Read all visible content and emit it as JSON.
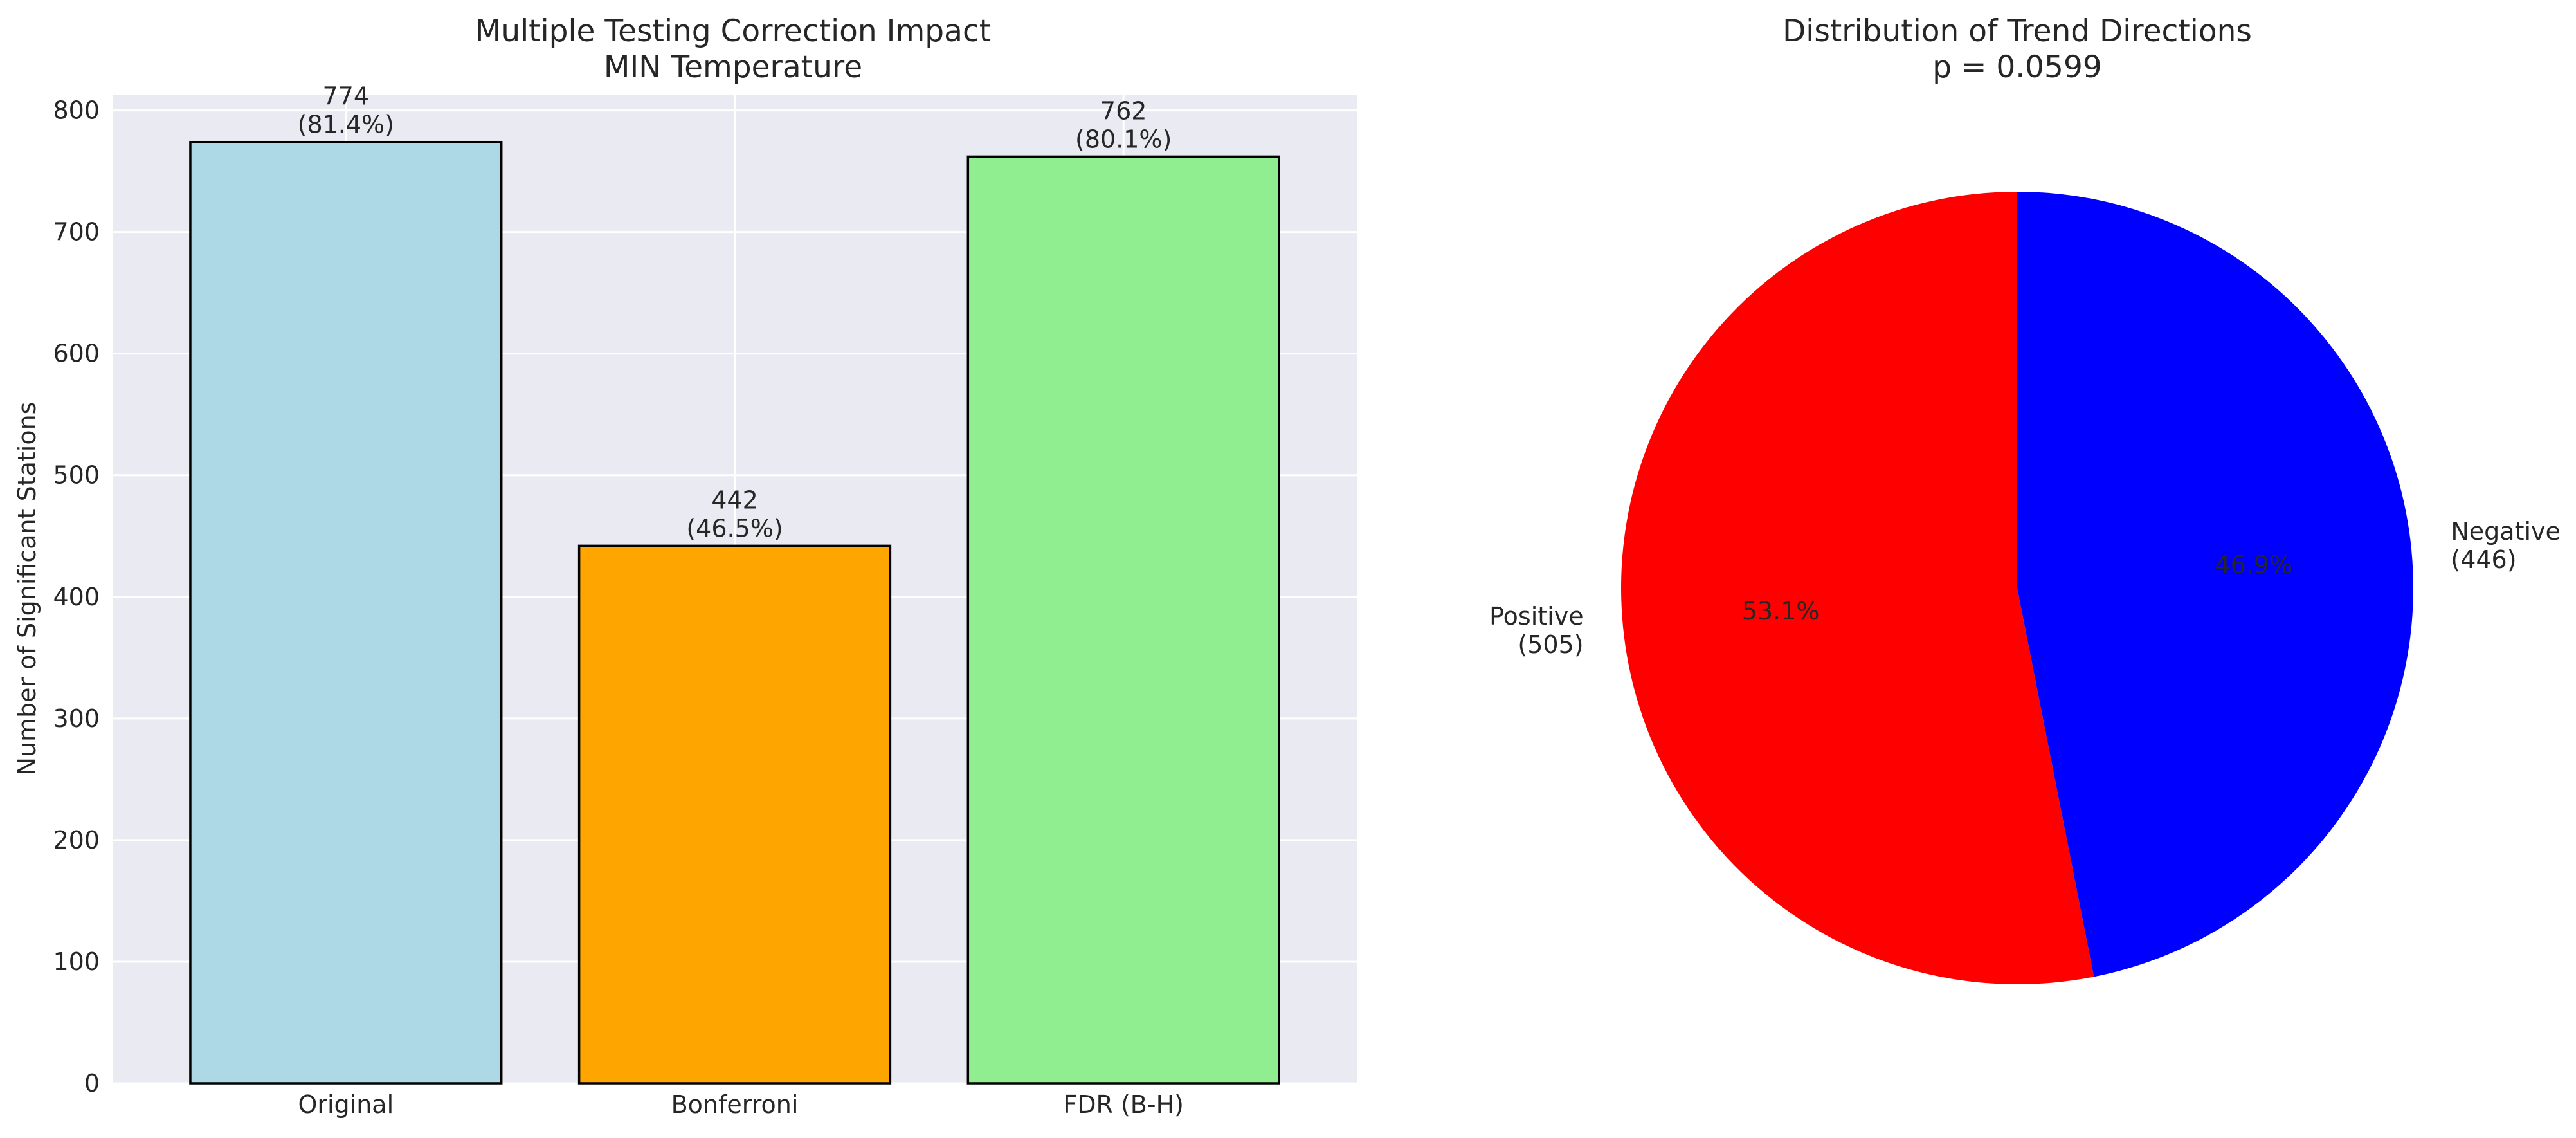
{
  "chart_data": [
    {
      "type": "bar",
      "title": "Multiple Testing Correction Impact",
      "subtitle": "MIN Temperature",
      "xlabel": "",
      "ylabel": "Number of Significant Stations",
      "categories": [
        "Original",
        "Bonferroni",
        "FDR (B-H)"
      ],
      "values": [
        774,
        442,
        762
      ],
      "bar_labels": [
        "774\n(81.4%)",
        "442\n(46.5%)",
        "762\n(80.1%)"
      ],
      "colors": [
        "#add8e6",
        "#ffa500",
        "#90ee90"
      ],
      "edge_color": "#000000",
      "ylim": [
        0,
        813
      ],
      "yticks": [
        0,
        100,
        200,
        300,
        400,
        500,
        600,
        700,
        800
      ],
      "grid": true,
      "background": "#eaeaf2"
    },
    {
      "type": "pie",
      "title": "Distribution of Trend Directions",
      "subtitle": "p = 0.0599",
      "slices": [
        {
          "label": "Positive\n(505)",
          "value": 505,
          "percent_label": "53.1%",
          "color": "#ff0000"
        },
        {
          "label": "Negative\n(446)",
          "value": 446,
          "percent_label": "46.9%",
          "color": "#0000ff"
        }
      ],
      "start_angle": 90,
      "direction": "counterclockwise"
    }
  ]
}
